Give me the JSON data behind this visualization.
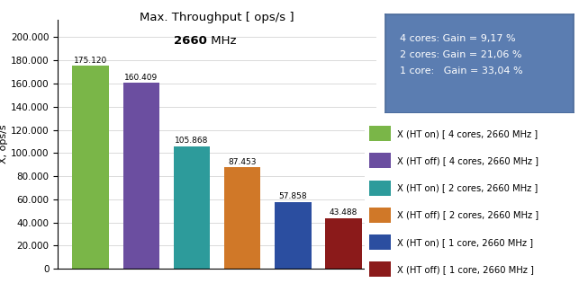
{
  "title_line1": "Max. Throughput [ ops/s ]",
  "title_bold": "2660",
  "title_rest": " MHz",
  "ylabel": "X, ops/s",
  "values": [
    175120,
    160409,
    105868,
    87453,
    57858,
    43488
  ],
  "labels": [
    "X (HT on) [ 4 cores, 2660 MHz ]",
    "X (HT off) [ 4 cores, 2660 MHz ]",
    "X (HT on) [ 2 cores, 2660 MHz ]",
    "X (HT off) [ 2 cores, 2660 MHz ]",
    "X (HT on) [ 1 core, 2660 MHz ]",
    "X (HT off) [ 1 core, 2660 MHz ]"
  ],
  "bar_colors": [
    "#7AB648",
    "#6B4EA0",
    "#2D9B9B",
    "#D07828",
    "#2B4EA0",
    "#8B1A1A"
  ],
  "value_labels": [
    "175.120",
    "160.409",
    "105.868",
    "87.453",
    "57.858",
    "43.488"
  ],
  "yticks": [
    0,
    20000,
    40000,
    60000,
    80000,
    100000,
    120000,
    140000,
    160000,
    180000,
    200000
  ],
  "ytick_labels": [
    "0",
    "20.000",
    "40.000",
    "60.000",
    "80.000",
    "100.000",
    "120.000",
    "140.000",
    "160.000",
    "180.000",
    "200.000"
  ],
  "ylim": [
    0,
    215000
  ],
  "info_lines": [
    "4 cores: Gain = 9,17 %",
    "2 cores: Gain = 21,06 %",
    "1 core:   Gain = 33,04 %"
  ],
  "info_box_bg": "#5B7DB1",
  "info_text_color": "white",
  "bg_color": "#F0F0F0"
}
